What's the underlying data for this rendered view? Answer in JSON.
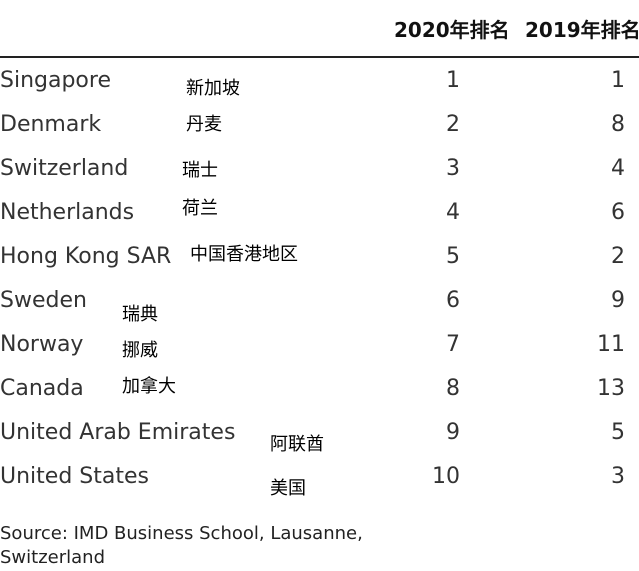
{
  "headers": {
    "rank_2020": "2020年排名",
    "rank_2019": "2019年排名"
  },
  "rows": [
    {
      "country_en": "Singapore",
      "country_zh": "新加坡",
      "rank_2020": "1",
      "rank_2019": "1"
    },
    {
      "country_en": "Denmark",
      "country_zh": "丹麦",
      "rank_2020": "2",
      "rank_2019": "8"
    },
    {
      "country_en": "Switzerland",
      "country_zh": "瑞士",
      "rank_2020": "3",
      "rank_2019": "4"
    },
    {
      "country_en": "Netherlands",
      "country_zh": "荷兰",
      "rank_2020": "4",
      "rank_2019": "6"
    },
    {
      "country_en": "Hong Kong SAR",
      "country_zh": "中国香港地区",
      "rank_2020": "5",
      "rank_2019": "2"
    },
    {
      "country_en": "Sweden",
      "country_zh": "瑞典",
      "rank_2020": "6",
      "rank_2019": "9"
    },
    {
      "country_en": "Norway",
      "country_zh": "挪威",
      "rank_2020": "7",
      "rank_2019": "11"
    },
    {
      "country_en": "Canada",
      "country_zh": "加拿大",
      "rank_2020": "8",
      "rank_2019": "13"
    },
    {
      "country_en": "United Arab Emirates",
      "country_zh": "阿联酋",
      "rank_2020": "9",
      "rank_2019": "5"
    },
    {
      "country_en": "United States",
      "country_zh": "美国",
      "rank_2020": "10",
      "rank_2019": "3"
    }
  ],
  "source": "Source: IMD Business School, Lausanne, Switzerland"
}
